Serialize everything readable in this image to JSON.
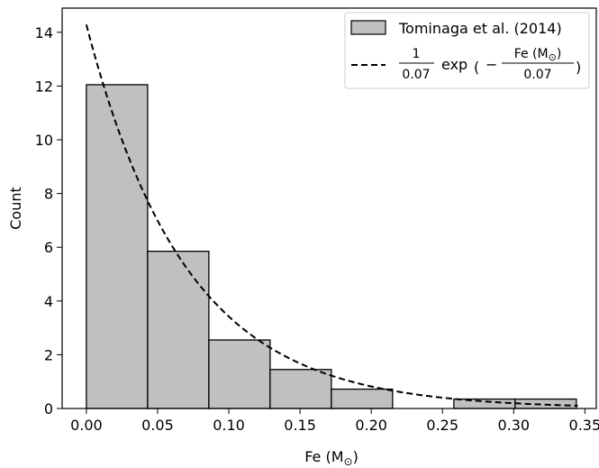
{
  "chart_data": {
    "type": "bar",
    "subtype": "histogram",
    "xlabel": "Fe (M",
    "xlabel_sub": "⊙",
    "xlabel_close": ")",
    "ylabel": "Count",
    "xlim": [
      -0.017,
      0.358
    ],
    "ylim": [
      0,
      14.9
    ],
    "xticks": [
      0.0,
      0.05,
      0.1,
      0.15,
      0.2,
      0.25,
      0.3,
      0.35
    ],
    "xtick_labels": [
      "0.00",
      "0.05",
      "0.10",
      "0.15",
      "0.20",
      "0.25",
      "0.30",
      "0.35"
    ],
    "yticks": [
      0,
      2,
      4,
      6,
      8,
      10,
      12,
      14
    ],
    "ytick_labels": [
      "0",
      "2",
      "4",
      "6",
      "8",
      "10",
      "12",
      "14"
    ],
    "grid": false,
    "legend_position": "top-right",
    "bins": [
      {
        "x0": 0.0,
        "x1": 0.043,
        "count": 12.05
      },
      {
        "x0": 0.043,
        "x1": 0.086,
        "count": 5.85
      },
      {
        "x0": 0.086,
        "x1": 0.129,
        "count": 2.55
      },
      {
        "x0": 0.129,
        "x1": 0.172,
        "count": 1.45
      },
      {
        "x0": 0.172,
        "x1": 0.215,
        "count": 0.72
      },
      {
        "x0": 0.215,
        "x1": 0.258,
        "count": 0.0
      },
      {
        "x0": 0.258,
        "x1": 0.301,
        "count": 0.35
      },
      {
        "x0": 0.301,
        "x1": 0.344,
        "count": 0.35
      }
    ],
    "series": [
      {
        "name": "Tominaga et al. (2014)",
        "kind": "histogram",
        "color": "#c0c0c0",
        "edge_color": "#000000"
      },
      {
        "kind": "dashed-line",
        "color": "#000000",
        "scale": 1.0,
        "tau": 0.07,
        "x_range": [
          0.0,
          0.345
        ]
      }
    ],
    "legend": {
      "hist_label": "Tominaga et al. (2014)",
      "curve": {
        "frac_num": "1",
        "frac_den": "0.07",
        "exp": "exp",
        "minus": "−",
        "inner_num": "Fe (M",
        "inner_sub": "⊙",
        "inner_close": ")",
        "inner_den": "0.07",
        "open_paren": "(",
        "close_paren": ")"
      }
    }
  }
}
